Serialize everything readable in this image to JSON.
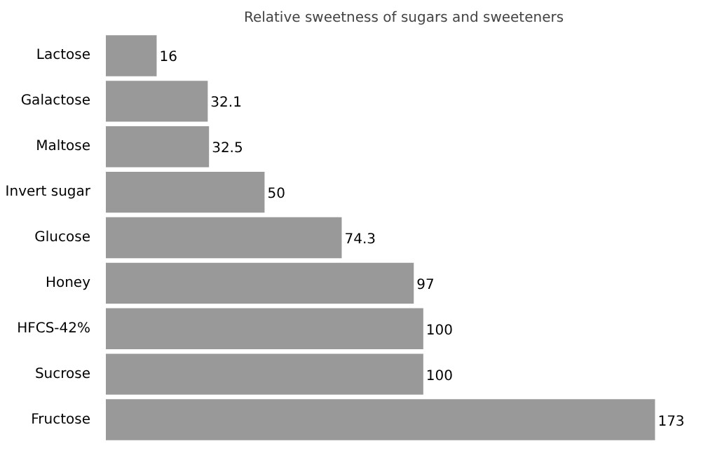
{
  "chart_data": {
    "type": "bar",
    "orientation": "horizontal",
    "title": "Relative sweetness of sugars and sweeteners",
    "categories": [
      "Lactose",
      "Galactose",
      "Maltose",
      "Invert sugar",
      "Glucose",
      "Honey",
      "HFCS-42%",
      "Sucrose",
      "Fructose"
    ],
    "values": [
      16,
      32.1,
      32.5,
      50,
      74.3,
      97,
      100,
      100,
      173
    ],
    "color": "#999999",
    "data_labels": true
  }
}
